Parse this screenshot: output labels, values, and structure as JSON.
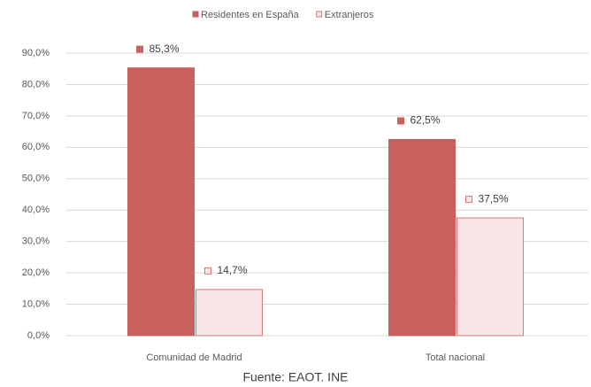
{
  "chart_data": {
    "type": "bar",
    "categories": [
      "Comunidad de Madrid",
      "Total nacional"
    ],
    "series": [
      {
        "name": "Residentes en España",
        "color": "#c8605e",
        "edgecolor": "#c8605e",
        "values": [
          85.3,
          62.5
        ],
        "value_labels": [
          "85,3%",
          "62,5%"
        ]
      },
      {
        "name": "Extranjeros",
        "color": "#f8e6e6",
        "edgecolor": "#d5797b",
        "values": [
          14.7,
          37.5
        ],
        "value_labels": [
          "14,7%",
          "37,5%"
        ]
      }
    ],
    "ylim": [
      0,
      90
    ],
    "yticks": [
      {
        "value": 0,
        "label": "0,0%"
      },
      {
        "value": 10,
        "label": "10,0%"
      },
      {
        "value": 20,
        "label": "20,0%"
      },
      {
        "value": 30,
        "label": "30,0%"
      },
      {
        "value": 40,
        "label": "40,0%"
      },
      {
        "value": 50,
        "label": "50,0%"
      },
      {
        "value": 60,
        "label": "60,0%"
      },
      {
        "value": 70,
        "label": "70,0%"
      },
      {
        "value": 80,
        "label": "80,0%"
      },
      {
        "value": 90,
        "label": "90,0%"
      }
    ],
    "grid": true,
    "legend": "top",
    "source": "Fuente: EAOT. INE"
  }
}
